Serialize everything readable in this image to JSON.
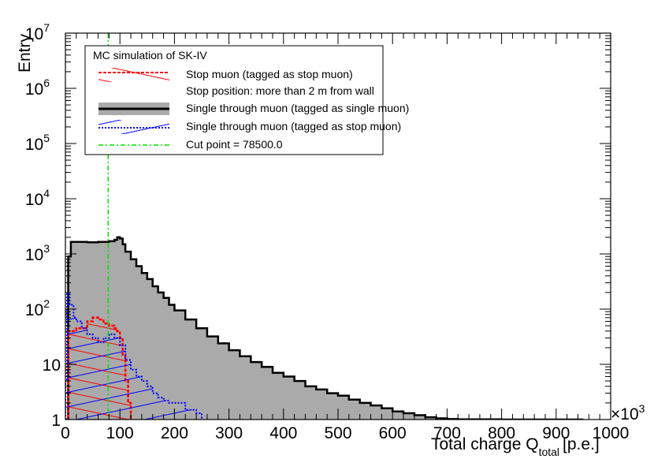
{
  "chart_data": {
    "type": "histogram",
    "title": "",
    "xlabel": "Total charge Q",
    "xlabel_subscript": "total",
    "xlabel_unit": "[p.e.]",
    "x_multiplier": "×10",
    "x_multiplier_exp": "3",
    "ylabel": "Entry",
    "xlim": [
      0,
      1000
    ],
    "ylim": [
      1,
      10000000
    ],
    "yscale": "log",
    "x_ticks": [
      "0",
      "100",
      "200",
      "300",
      "400",
      "500",
      "600",
      "700",
      "800",
      "900",
      "1000"
    ],
    "y_ticks": [
      {
        "base": "1",
        "exp": ""
      },
      {
        "base": "10",
        "exp": ""
      },
      {
        "base": "10",
        "exp": "2"
      },
      {
        "base": "10",
        "exp": "3"
      },
      {
        "base": "10",
        "exp": "4"
      },
      {
        "base": "10",
        "exp": "5"
      },
      {
        "base": "10",
        "exp": "6"
      },
      {
        "base": "10",
        "exp": "7"
      }
    ],
    "legend": {
      "position": "top-left",
      "header": "MC simulation of SK-IV",
      "entries": [
        {
          "label": "Stop muon (tagged as stop muon)",
          "color": "#ff0000",
          "style": "dashed"
        },
        {
          "label": "Stop position: more than 2 m from wall",
          "color": "",
          "style": "none"
        },
        {
          "label": "Single through muon (tagged as single muon)",
          "color": "#000000",
          "fill": "#aaaaaa",
          "style": "solid"
        },
        {
          "label": "Single through muon (tagged as stop muon)",
          "color": "#0000ff",
          "style": "dotted"
        },
        {
          "label": "Cut point =  78500.0",
          "color": "#00dd00",
          "style": "dashdot"
        }
      ]
    },
    "cut_point": 78.5,
    "series": [
      {
        "name": "Single through muon (tagged as single muon)",
        "color": "#000000",
        "fill": "#aaaaaa",
        "points": [
          [
            0,
            1
          ],
          [
            5,
            900
          ],
          [
            10,
            1650
          ],
          [
            20,
            1650
          ],
          [
            40,
            1620
          ],
          [
            60,
            1650
          ],
          [
            80,
            1700
          ],
          [
            90,
            1800
          ],
          [
            95,
            2000
          ],
          [
            100,
            1900
          ],
          [
            105,
            1500
          ],
          [
            110,
            1100
          ],
          [
            120,
            800
          ],
          [
            130,
            600
          ],
          [
            140,
            450
          ],
          [
            150,
            350
          ],
          [
            160,
            260
          ],
          [
            170,
            200
          ],
          [
            180,
            160
          ],
          [
            190,
            120
          ],
          [
            200,
            95
          ],
          [
            220,
            65
          ],
          [
            240,
            45
          ],
          [
            260,
            32
          ],
          [
            280,
            24
          ],
          [
            300,
            18
          ],
          [
            320,
            14
          ],
          [
            340,
            11
          ],
          [
            360,
            9
          ],
          [
            380,
            7
          ],
          [
            400,
            6
          ],
          [
            420,
            5
          ],
          [
            440,
            4
          ],
          [
            460,
            3.5
          ],
          [
            480,
            3
          ],
          [
            500,
            2.7
          ],
          [
            520,
            2.3
          ],
          [
            540,
            2
          ],
          [
            560,
            1.8
          ],
          [
            580,
            1.6
          ],
          [
            600,
            1.4
          ],
          [
            620,
            1.3
          ],
          [
            640,
            1.2
          ],
          [
            660,
            1.1
          ],
          [
            680,
            1.05
          ],
          [
            700,
            1.02
          ],
          [
            720,
            1.01
          ],
          [
            800,
            1
          ],
          [
            950,
            1
          ]
        ]
      },
      {
        "name": "Stop muon (tagged as stop muon)",
        "color": "#ff0000",
        "points": [
          [
            0,
            1
          ],
          [
            5,
            40
          ],
          [
            20,
            45
          ],
          [
            40,
            60
          ],
          [
            50,
            70
          ],
          [
            60,
            65
          ],
          [
            70,
            55
          ],
          [
            80,
            50
          ],
          [
            90,
            45
          ],
          [
            95,
            40
          ],
          [
            100,
            30
          ],
          [
            105,
            15
          ],
          [
            110,
            5
          ],
          [
            115,
            2
          ],
          [
            120,
            1
          ]
        ]
      },
      {
        "name": "Single through muon (tagged as stop muon)",
        "color": "#0000ff",
        "points": [
          [
            0,
            5
          ],
          [
            3,
            200
          ],
          [
            8,
            120
          ],
          [
            15,
            70
          ],
          [
            20,
            60
          ],
          [
            30,
            45
          ],
          [
            40,
            35
          ],
          [
            50,
            30
          ],
          [
            60,
            25
          ],
          [
            70,
            30
          ],
          [
            80,
            35
          ],
          [
            90,
            30
          ],
          [
            100,
            22
          ],
          [
            110,
            12
          ],
          [
            120,
            8
          ],
          [
            130,
            6
          ],
          [
            140,
            5
          ],
          [
            150,
            4
          ],
          [
            160,
            3
          ],
          [
            170,
            2.5
          ],
          [
            180,
            2.2
          ],
          [
            190,
            2
          ],
          [
            200,
            2
          ],
          [
            220,
            1.5
          ],
          [
            240,
            1.3
          ],
          [
            250,
            1
          ]
        ]
      }
    ]
  }
}
